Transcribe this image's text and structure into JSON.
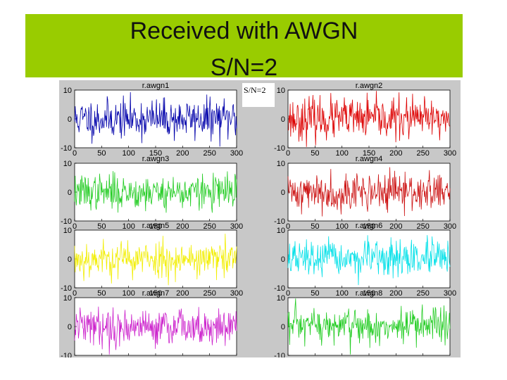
{
  "slide": {
    "title_line1": "Received with AWGN",
    "title_line2": "S/N=2",
    "stamp_text": "S/N=2",
    "banner_color": "#99cc00"
  },
  "chart_data": [
    {
      "type": "line",
      "title": "r.awgn1",
      "xlim": [
        0,
        300
      ],
      "ylim": [
        -10,
        10
      ],
      "yticks": [
        -10,
        0,
        10
      ],
      "ytick_labels": [
        "-10",
        "0",
        "10"
      ],
      "xticks": [
        0,
        50,
        100,
        150,
        200,
        250,
        300
      ],
      "color": "#0000aa",
      "seed": 11,
      "n": 300,
      "amp": 3.4
    },
    {
      "type": "line",
      "title": "r.awgn2",
      "xlim": [
        0,
        300
      ],
      "ylim": [
        -10,
        10
      ],
      "yticks": [
        -10,
        0,
        10
      ],
      "ytick_labels": [
        "-10",
        "0",
        "10"
      ],
      "xticks": [
        0,
        50,
        100,
        150,
        200,
        250,
        300
      ],
      "color": "#dd0000",
      "seed": 23,
      "n": 300,
      "amp": 3.6
    },
    {
      "type": "line",
      "title": "r.awgn3",
      "xlim": [
        0,
        300
      ],
      "ylim": [
        -10,
        10
      ],
      "yticks": [
        -10,
        0,
        10
      ],
      "ytick_labels": [
        "-10",
        "0",
        "10"
      ],
      "xticks": [
        0,
        50,
        100,
        150,
        200,
        250,
        300
      ],
      "color": "#22cc22",
      "seed": 37,
      "n": 300,
      "amp": 3.0
    },
    {
      "type": "line",
      "title": "r.awgn4",
      "xlim": [
        0,
        300
      ],
      "ylim": [
        -10,
        10
      ],
      "yticks": [
        -10,
        0,
        10
      ],
      "ytick_labels": [
        "-10",
        "0",
        "10"
      ],
      "xticks": [
        0,
        50,
        100,
        150,
        200,
        250,
        300
      ],
      "color": "#cc1111",
      "seed": 41,
      "n": 300,
      "amp": 3.3
    },
    {
      "type": "line",
      "title": "r.awgn5",
      "xlim": [
        0,
        300
      ],
      "ylim": [
        -10,
        10
      ],
      "yticks": [
        -10,
        0,
        10
      ],
      "ytick_labels": [
        "-10",
        "0",
        "10"
      ],
      "xticks": [
        0,
        50,
        100,
        150,
        200,
        250,
        300
      ],
      "color": "#f2ee00",
      "seed": 53,
      "n": 300,
      "amp": 3.2
    },
    {
      "type": "line",
      "title": "r.awgn6",
      "xlim": [
        0,
        300
      ],
      "ylim": [
        -10,
        10
      ],
      "yticks": [
        -10,
        0,
        10
      ],
      "ytick_labels": [
        "-10",
        "0",
        "10"
      ],
      "xticks": [
        0,
        50,
        100,
        150,
        200,
        250,
        300
      ],
      "color": "#00e0e8",
      "seed": 67,
      "n": 300,
      "amp": 3.1
    },
    {
      "type": "line",
      "title": "r.awgn7",
      "xlim": [
        0,
        300
      ],
      "ylim": [
        -10,
        10
      ],
      "yticks": [
        -10,
        0,
        10
      ],
      "ytick_labels": [
        "-10",
        "0",
        "10"
      ],
      "xticks": [
        0,
        50,
        100,
        150,
        200,
        250,
        300
      ],
      "color": "#cc22cc",
      "seed": 79,
      "n": 300,
      "amp": 3.2
    },
    {
      "type": "line",
      "title": "r.awgn8",
      "xlim": [
        0,
        300
      ],
      "ylim": [
        -10,
        10
      ],
      "yticks": [
        -10,
        0,
        10
      ],
      "ytick_labels": [
        "-10",
        "0",
        "10"
      ],
      "xticks": [
        0,
        50,
        100,
        150,
        200,
        250,
        300
      ],
      "color": "#22cc22",
      "seed": 97,
      "n": 300,
      "amp": 3.3
    }
  ]
}
